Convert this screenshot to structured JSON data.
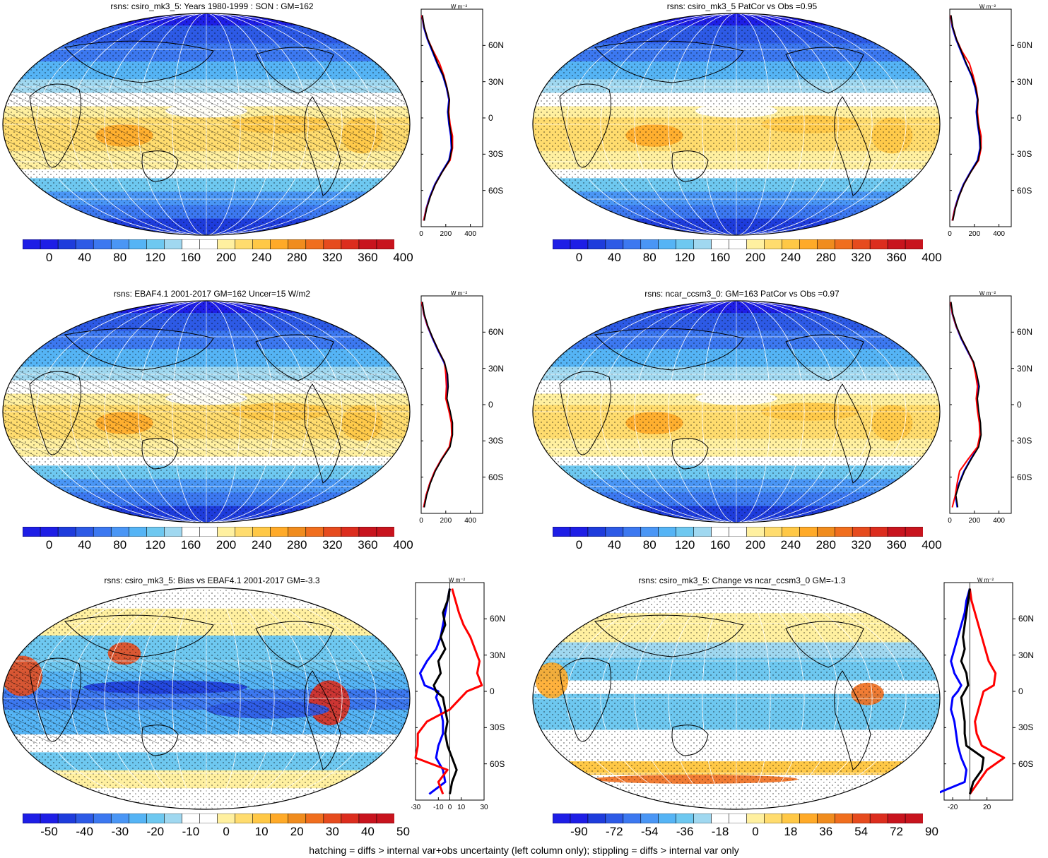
{
  "footer_text": "hatching = diffs > internal var+obs uncertainty (left column only); stippling = diffs > internal var only",
  "lat_labels": [
    "60N",
    "30N",
    "0",
    "30S",
    "60S"
  ],
  "zonal_unit_label": "W m⁻²",
  "colors": {
    "model": "#0000ff",
    "obs": "#ff0000",
    "diff": "#000000",
    "palette": [
      "#1e1ee6",
      "#1e3cdc",
      "#2d5ae6",
      "#3c78f0",
      "#4a96f5",
      "#55b4f5",
      "#6ec8f0",
      "#a0d8f0",
      "#ffffff",
      "#ffffff",
      "#fff0a0",
      "#ffdc6e",
      "#ffc846",
      "#ffaa28",
      "#f08c1e",
      "#f06e1e",
      "#e64b1e",
      "#dc2d1e",
      "#c8141e"
    ]
  },
  "panels": [
    {
      "id": "p1",
      "title": "rsns: csiro_mk3_5: Years 1980-1999 : SON : GM=162",
      "field": "abs",
      "hatch_zone": true,
      "cbar_labels": [
        "0",
        "40",
        "80",
        "120",
        "160",
        "200",
        "240",
        "280",
        "320",
        "360",
        "400"
      ],
      "zonal_ticks": [
        "0",
        "200",
        "400"
      ]
    },
    {
      "id": "p2",
      "title": "rsns: csiro_mk3_5 PatCor vs Obs =0.95",
      "field": "abs",
      "hatch_zone": false,
      "cbar_labels": [
        "0",
        "40",
        "80",
        "120",
        "160",
        "200",
        "240",
        "280",
        "320",
        "360",
        "400"
      ],
      "zonal_ticks": [
        "0",
        "200",
        "400"
      ]
    },
    {
      "id": "p3",
      "title": "rsns: EBAF4.1 2001-2017 GM=162 Uncer=15 W/m2",
      "field": "abs",
      "hatch_zone": true,
      "cbar_labels": [
        "0",
        "40",
        "80",
        "120",
        "160",
        "200",
        "240",
        "280",
        "320",
        "360",
        "400"
      ],
      "zonal_ticks": [
        "0",
        "200",
        "400"
      ]
    },
    {
      "id": "p4",
      "title": "rsns: ncar_ccsm3_0: GM=163 PatCor vs Obs =0.97",
      "field": "abs",
      "hatch_zone": false,
      "cbar_labels": [
        "0",
        "40",
        "80",
        "120",
        "160",
        "200",
        "240",
        "280",
        "320",
        "360",
        "400"
      ],
      "zonal_ticks": [
        "0",
        "200",
        "400"
      ]
    },
    {
      "id": "p5",
      "title": "rsns: csiro_mk3_5: Bias vs EBAF4.1 2001-2017  GM=-3.3",
      "field": "bias",
      "hatch_zone": true,
      "cbar_labels": [
        "-50",
        "-40",
        "-30",
        "-20",
        "-10",
        "0",
        "10",
        "20",
        "30",
        "40",
        "50"
      ],
      "zonal_ticks": [
        "-30",
        "-10",
        "0",
        "10",
        "30"
      ]
    },
    {
      "id": "p6",
      "title": "rsns: csiro_mk3_5: Change vs ncar_ccsm3_0 GM=-1.3",
      "field": "change",
      "hatch_zone": false,
      "cbar_labels": [
        "-90",
        "-72",
        "-54",
        "-36",
        "-18",
        "0",
        "18",
        "36",
        "54",
        "72",
        "90"
      ],
      "zonal_ticks": [
        "-20",
        "20"
      ]
    }
  ],
  "chart_data": [
    {
      "type": "line",
      "title": "rsns: csiro_mk3_5: Years 1980-1999 : SON : GM=162",
      "ylabel": "",
      "xlabel": "W m⁻²",
      "xlim": [
        0,
        500
      ],
      "series": [
        {
          "name": "",
          "lat": [
            85,
            75,
            65,
            55,
            45,
            35,
            25,
            15,
            5,
            -5,
            -15,
            -25,
            -35,
            -45,
            -55,
            -65,
            -75,
            -85
          ],
          "values": [
            5,
            20,
            50,
            90,
            130,
            175,
            205,
            225,
            215,
            225,
            240,
            245,
            225,
            165,
            110,
            70,
            40,
            20
          ]
        },
        {
          "name": "",
          "lat": [
            85,
            75,
            65,
            55,
            45,
            35,
            25,
            15,
            5,
            -5,
            -15,
            -25,
            -35,
            -45,
            -55,
            -65,
            -75,
            -85
          ],
          "values": [
            5,
            25,
            55,
            100,
            150,
            185,
            210,
            230,
            225,
            235,
            255,
            255,
            235,
            170,
            115,
            75,
            42,
            20
          ]
        }
      ]
    },
    {
      "type": "line",
      "title": "rsns: csiro_mk3_5 PatCor vs Obs =0.95",
      "xlabel": "W m⁻²",
      "xlim": [
        0,
        500
      ],
      "series": [
        {
          "name": "",
          "lat": [
            85,
            75,
            65,
            55,
            45,
            35,
            25,
            15,
            5,
            -5,
            -15,
            -25,
            -35,
            -45,
            -55,
            -65,
            -75,
            -85
          ],
          "values": [
            5,
            20,
            50,
            90,
            130,
            175,
            205,
            225,
            215,
            225,
            240,
            245,
            225,
            165,
            110,
            70,
            40,
            20
          ]
        },
        {
          "name": "",
          "lat": [
            85,
            75,
            65,
            55,
            45,
            35,
            25,
            15,
            5,
            -5,
            -15,
            -25,
            -35,
            -45,
            -55,
            -65,
            -75,
            -85
          ],
          "values": [
            5,
            25,
            55,
            100,
            160,
            190,
            215,
            230,
            225,
            235,
            255,
            255,
            235,
            170,
            115,
            75,
            42,
            20
          ]
        }
      ]
    },
    {
      "type": "line",
      "title": "rsns: EBAF4.1 2001-2017 GM=162 Uncer=15 W/m2",
      "xlabel": "W m⁻²",
      "xlim": [
        0,
        500
      ],
      "series": [
        {
          "name": "",
          "lat": [
            85,
            75,
            65,
            55,
            45,
            35,
            25,
            15,
            5,
            -5,
            -15,
            -25,
            -35,
            -45,
            -55,
            -65,
            -75,
            -85
          ],
          "values": [
            5,
            20,
            50,
            90,
            135,
            185,
            210,
            215,
            205,
            230,
            250,
            250,
            230,
            165,
            110,
            70,
            40,
            20
          ]
        },
        {
          "name": "",
          "lat": [
            85,
            75,
            65,
            55,
            45,
            35,
            25,
            15,
            5,
            -5,
            -15,
            -25,
            -35,
            -45,
            -55,
            -65,
            -75,
            -85
          ],
          "values": [
            5,
            22,
            52,
            95,
            140,
            190,
            200,
            205,
            200,
            225,
            245,
            248,
            228,
            165,
            110,
            70,
            40,
            20
          ]
        }
      ]
    },
    {
      "type": "line",
      "title": "rsns: ncar_ccsm3_0: GM=163 PatCor vs Obs =0.97",
      "xlabel": "W m⁻²",
      "xlim": [
        0,
        500
      ],
      "series": [
        {
          "name": "",
          "lat": [
            85,
            75,
            65,
            55,
            45,
            35,
            25,
            15,
            5,
            -5,
            -15,
            -25,
            -35,
            -45,
            -55,
            -65,
            -75,
            -85
          ],
          "values": [
            5,
            20,
            50,
            90,
            140,
            190,
            215,
            235,
            220,
            230,
            245,
            250,
            230,
            170,
            115,
            75,
            45,
            60
          ]
        },
        {
          "name": "",
          "lat": [
            85,
            75,
            65,
            55,
            45,
            35,
            25,
            15,
            5,
            -5,
            -15,
            -25,
            -35,
            -45,
            -55,
            -65,
            -75,
            -85
          ],
          "values": [
            5,
            22,
            52,
            95,
            145,
            190,
            210,
            225,
            215,
            225,
            240,
            245,
            225,
            150,
            80,
            60,
            45,
            20
          ]
        }
      ]
    },
    {
      "type": "line",
      "title": "rsns: csiro_mk3_5: Bias vs EBAF4.1 2001-2017  GM=-3.3",
      "xlabel": "W m⁻²",
      "xlim": [
        -30,
        30
      ],
      "series": [
        {
          "name": "",
          "lat": [
            85,
            75,
            65,
            55,
            45,
            35,
            25,
            15,
            5,
            0,
            -5,
            -15,
            -25,
            -35,
            -45,
            -55,
            -65,
            -75,
            -85
          ],
          "values": [
            0,
            -2,
            -4,
            -6,
            -8,
            -12,
            -20,
            -26,
            -22,
            -10,
            -12,
            -8,
            -6,
            -6,
            -10,
            -12,
            -6,
            -4,
            -18
          ]
        },
        {
          "name": "",
          "lat": [
            85,
            75,
            65,
            55,
            45,
            35,
            25,
            15,
            5,
            0,
            -5,
            -15,
            -25,
            -35,
            -45,
            -55,
            -65,
            -75,
            -85
          ],
          "values": [
            2,
            5,
            8,
            12,
            18,
            22,
            26,
            24,
            28,
            15,
            10,
            0,
            -20,
            -28,
            -28,
            -30,
            -2,
            -10,
            -6
          ]
        },
        {
          "name": "",
          "lat": [
            85,
            75,
            65,
            55,
            45,
            35,
            25,
            15,
            5,
            0,
            -5,
            -15,
            -25,
            -35,
            -45,
            -55,
            -65,
            -75,
            -85
          ],
          "values": [
            0,
            -2,
            -6,
            -4,
            -8,
            -4,
            -10,
            -8,
            -14,
            -12,
            -6,
            -4,
            -2,
            -4,
            -2,
            2,
            6,
            2,
            0
          ]
        }
      ]
    },
    {
      "type": "line",
      "title": "rsns: csiro_mk3_5: Change vs ncar_ccsm3_0 GM=-1.3",
      "xlabel": "W m⁻²",
      "xlim": [
        -30,
        50
      ],
      "series": [
        {
          "name": "",
          "lat": [
            85,
            75,
            65,
            55,
            45,
            35,
            25,
            15,
            5,
            0,
            -5,
            -15,
            -25,
            -35,
            -45,
            -55,
            -65,
            -75,
            -85
          ],
          "values": [
            0,
            -4,
            -6,
            -10,
            -14,
            -18,
            -22,
            -18,
            -10,
            -14,
            -20,
            -22,
            -18,
            -16,
            -14,
            -10,
            -4,
            -6,
            -40
          ]
        },
        {
          "name": "",
          "lat": [
            85,
            75,
            65,
            55,
            45,
            35,
            25,
            15,
            5,
            0,
            -5,
            -15,
            -25,
            -35,
            -45,
            -55,
            -65,
            -75,
            -85
          ],
          "values": [
            0,
            2,
            6,
            10,
            14,
            18,
            22,
            30,
            28,
            16,
            14,
            10,
            6,
            8,
            14,
            40,
            20,
            10,
            0
          ]
        },
        {
          "name": "",
          "lat": [
            85,
            75,
            65,
            55,
            45,
            35,
            25,
            15,
            5,
            0,
            -5,
            -15,
            -25,
            -35,
            -45,
            -55,
            -65,
            -75,
            -85
          ],
          "values": [
            0,
            -2,
            -4,
            -6,
            -8,
            -6,
            -10,
            -4,
            -2,
            -6,
            -10,
            -8,
            -6,
            -6,
            -4,
            16,
            14,
            4,
            0
          ]
        }
      ]
    }
  ]
}
